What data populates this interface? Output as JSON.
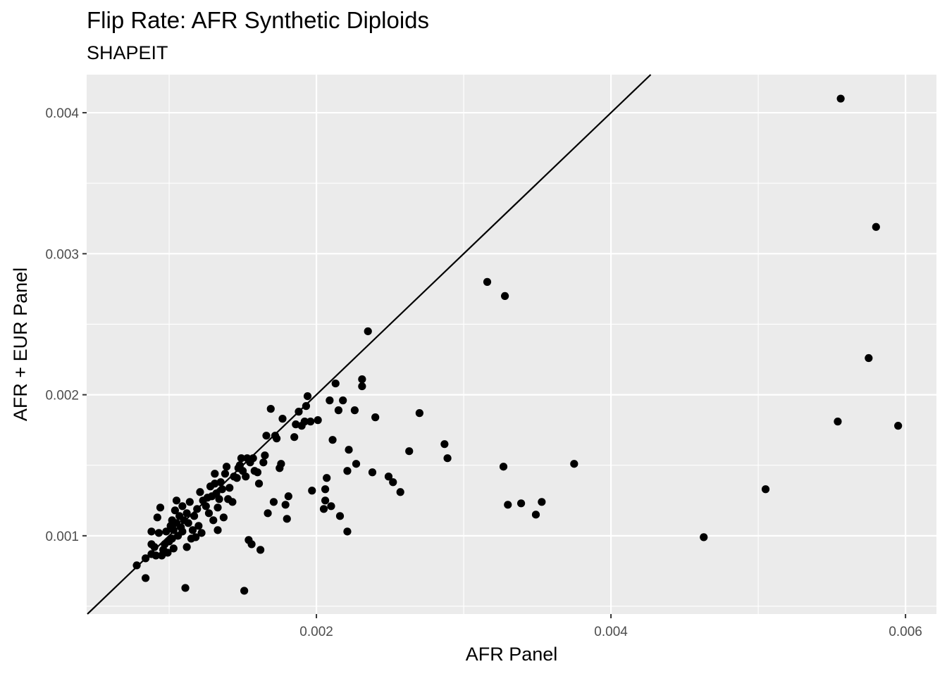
{
  "chart_data": {
    "type": "scatter",
    "title": "Flip Rate: AFR Synthetic Diploids",
    "subtitle": "SHAPEIT",
    "xlabel": "AFR Panel",
    "ylabel": "AFR + EUR Panel",
    "xlim": [
      0.00044,
      0.00621
    ],
    "ylim": [
      0.000445,
      0.00427
    ],
    "x_ticks": [
      0.002,
      0.004,
      0.006
    ],
    "x_tick_labels": [
      "0.002",
      "0.004",
      "0.006"
    ],
    "y_ticks": [
      0.001,
      0.002,
      0.003,
      0.004
    ],
    "y_tick_labels": [
      "0.001",
      "0.002",
      "0.003",
      "0.004"
    ],
    "reference_line": {
      "slope": 1,
      "intercept": 0
    },
    "grid": true,
    "background": "#ebebeb",
    "gridline_color": "#ffffff",
    "point_color": "#000000",
    "points": [
      [
        0.00078,
        0.00079
      ],
      [
        0.00084,
        0.00084
      ],
      [
        0.00084,
        0.0007
      ],
      [
        0.00088,
        0.00094
      ],
      [
        0.00088,
        0.00103
      ],
      [
        0.00088,
        0.00087
      ],
      [
        0.0009,
        0.00092
      ],
      [
        0.00091,
        0.00086
      ],
      [
        0.00092,
        0.00113
      ],
      [
        0.00093,
        0.00102
      ],
      [
        0.00094,
        0.0012
      ],
      [
        0.00095,
        0.00086
      ],
      [
        0.00096,
        0.0009
      ],
      [
        0.00097,
        0.00094
      ],
      [
        0.00098,
        0.00103
      ],
      [
        0.00099,
        0.00088
      ],
      [
        0.001,
        0.00096
      ],
      [
        0.00101,
        0.00107
      ],
      [
        0.00102,
        0.00111
      ],
      [
        0.00102,
        0.00098
      ],
      [
        0.00103,
        0.00091
      ],
      [
        0.00103,
        0.00104
      ],
      [
        0.00104,
        0.00118
      ],
      [
        0.00105,
        0.00109
      ],
      [
        0.00105,
        0.00125
      ],
      [
        0.00106,
        0.001
      ],
      [
        0.00107,
        0.00114
      ],
      [
        0.00108,
        0.00106
      ],
      [
        0.00109,
        0.00103
      ],
      [
        0.00109,
        0.00121
      ],
      [
        0.0011,
        0.00111
      ],
      [
        0.00111,
        0.00063
      ],
      [
        0.00112,
        0.00092
      ],
      [
        0.00112,
        0.00116
      ],
      [
        0.00113,
        0.00109
      ],
      [
        0.00114,
        0.00124
      ],
      [
        0.00115,
        0.00098
      ],
      [
        0.00116,
        0.00104
      ],
      [
        0.00117,
        0.00114
      ],
      [
        0.00118,
        0.00099
      ],
      [
        0.00119,
        0.00119
      ],
      [
        0.0012,
        0.00107
      ],
      [
        0.00121,
        0.00131
      ],
      [
        0.00122,
        0.00102
      ],
      [
        0.00123,
        0.00125
      ],
      [
        0.00125,
        0.00121
      ],
      [
        0.00126,
        0.00127
      ],
      [
        0.00127,
        0.00116
      ],
      [
        0.00128,
        0.00135
      ],
      [
        0.00129,
        0.00128
      ],
      [
        0.0013,
        0.00111
      ],
      [
        0.00131,
        0.00137
      ],
      [
        0.00131,
        0.00144
      ],
      [
        0.00132,
        0.0013
      ],
      [
        0.00133,
        0.0012
      ],
      [
        0.00133,
        0.00104
      ],
      [
        0.00134,
        0.00126
      ],
      [
        0.00135,
        0.00138
      ],
      [
        0.00136,
        0.00133
      ],
      [
        0.00137,
        0.00113
      ],
      [
        0.00138,
        0.00144
      ],
      [
        0.00139,
        0.00149
      ],
      [
        0.0014,
        0.00126
      ],
      [
        0.00141,
        0.00134
      ],
      [
        0.00143,
        0.00124
      ],
      [
        0.00144,
        0.00142
      ],
      [
        0.00146,
        0.00141
      ],
      [
        0.00147,
        0.00148
      ],
      [
        0.00148,
        0.0015
      ],
      [
        0.00149,
        0.00155
      ],
      [
        0.0015,
        0.00146
      ],
      [
        0.00151,
        0.00061
      ],
      [
        0.00152,
        0.00142
      ],
      [
        0.00153,
        0.00155
      ],
      [
        0.00154,
        0.00097
      ],
      [
        0.00155,
        0.00152
      ],
      [
        0.00156,
        0.00094
      ],
      [
        0.00157,
        0.00155
      ],
      [
        0.00158,
        0.00146
      ],
      [
        0.0016,
        0.00145
      ],
      [
        0.00161,
        0.00137
      ],
      [
        0.00162,
        0.0009
      ],
      [
        0.00164,
        0.00152
      ],
      [
        0.00165,
        0.00157
      ],
      [
        0.00166,
        0.00171
      ],
      [
        0.00167,
        0.00116
      ],
      [
        0.00169,
        0.0019
      ],
      [
        0.00171,
        0.00124
      ],
      [
        0.00172,
        0.00171
      ],
      [
        0.00173,
        0.00169
      ],
      [
        0.00175,
        0.00148
      ],
      [
        0.00176,
        0.00151
      ],
      [
        0.00177,
        0.00183
      ],
      [
        0.00179,
        0.00122
      ],
      [
        0.0018,
        0.00112
      ],
      [
        0.00181,
        0.00128
      ],
      [
        0.00185,
        0.0017
      ],
      [
        0.00186,
        0.00179
      ],
      [
        0.00188,
        0.00188
      ],
      [
        0.0019,
        0.00178
      ],
      [
        0.00192,
        0.00181
      ],
      [
        0.00193,
        0.00192
      ],
      [
        0.00194,
        0.00199
      ],
      [
        0.00196,
        0.00181
      ],
      [
        0.00197,
        0.00132
      ],
      [
        0.00201,
        0.00182
      ],
      [
        0.00205,
        0.00119
      ],
      [
        0.00206,
        0.00133
      ],
      [
        0.00206,
        0.00125
      ],
      [
        0.00207,
        0.00141
      ],
      [
        0.00209,
        0.00196
      ],
      [
        0.0021,
        0.00121
      ],
      [
        0.00211,
        0.00168
      ],
      [
        0.00213,
        0.00208
      ],
      [
        0.00215,
        0.00189
      ],
      [
        0.00216,
        0.00114
      ],
      [
        0.00218,
        0.00196
      ],
      [
        0.00221,
        0.00103
      ],
      [
        0.00221,
        0.00146
      ],
      [
        0.00222,
        0.00161
      ],
      [
        0.00226,
        0.00189
      ],
      [
        0.00227,
        0.00151
      ],
      [
        0.00231,
        0.00211
      ],
      [
        0.00231,
        0.00206
      ],
      [
        0.00235,
        0.00245
      ],
      [
        0.00238,
        0.00145
      ],
      [
        0.0024,
        0.00184
      ],
      [
        0.00249,
        0.00142
      ],
      [
        0.00252,
        0.00138
      ],
      [
        0.00257,
        0.00131
      ],
      [
        0.00263,
        0.0016
      ],
      [
        0.0027,
        0.00187
      ],
      [
        0.00287,
        0.00165
      ],
      [
        0.00289,
        0.00155
      ],
      [
        0.00316,
        0.0028
      ],
      [
        0.00327,
        0.00149
      ],
      [
        0.00328,
        0.0027
      ],
      [
        0.0033,
        0.00122
      ],
      [
        0.00339,
        0.00123
      ],
      [
        0.00349,
        0.00115
      ],
      [
        0.00353,
        0.00124
      ],
      [
        0.00375,
        0.00151
      ],
      [
        0.00463,
        0.00099
      ],
      [
        0.00505,
        0.00133
      ],
      [
        0.00554,
        0.00181
      ],
      [
        0.00556,
        0.0041
      ],
      [
        0.00575,
        0.00226
      ],
      [
        0.0058,
        0.00319
      ],
      [
        0.00595,
        0.00178
      ]
    ]
  }
}
